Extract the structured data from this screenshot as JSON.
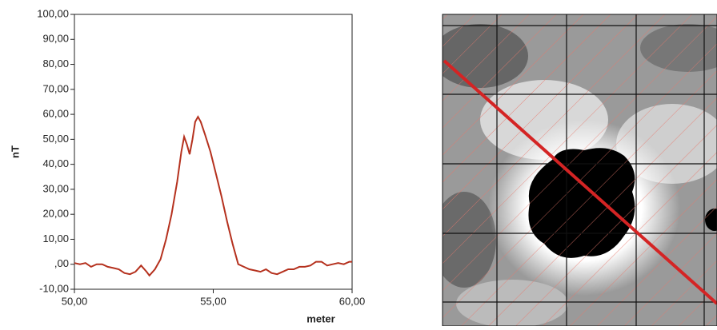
{
  "chart_data": {
    "type": "line",
    "xlabel": "meter",
    "ylabel": "nT",
    "xlim": [
      50,
      60
    ],
    "xticks": [
      {
        "value": 50,
        "label": "50,00"
      },
      {
        "value": 55,
        "label": "55,00"
      },
      {
        "value": 60,
        "label": "60,00"
      }
    ],
    "ylim": [
      -10,
      100
    ],
    "yticks": [
      {
        "value": -10,
        "label": "-10,00"
      },
      {
        "value": 0,
        "label": ",00"
      },
      {
        "value": 10,
        "label": "10,00"
      },
      {
        "value": 20,
        "label": "20,00"
      },
      {
        "value": 30,
        "label": "30,00"
      },
      {
        "value": 40,
        "label": "40,00"
      },
      {
        "value": 50,
        "label": "50,00"
      },
      {
        "value": 60,
        "label": "60,00"
      },
      {
        "value": 70,
        "label": "70,00"
      },
      {
        "value": 80,
        "label": "80,00"
      },
      {
        "value": 90,
        "label": "90,00"
      },
      {
        "value": 100,
        "label": "100,00"
      }
    ],
    "series": [
      {
        "color": "#b5311e",
        "x": [
          50.0,
          50.2,
          50.4,
          50.6,
          50.8,
          51.0,
          51.2,
          51.4,
          51.6,
          51.8,
          52.0,
          52.2,
          52.4,
          52.6,
          52.7,
          52.9,
          53.1,
          53.3,
          53.5,
          53.7,
          53.85,
          53.95,
          54.05,
          54.15,
          54.25,
          54.35,
          54.45,
          54.55,
          54.7,
          54.9,
          55.1,
          55.3,
          55.5,
          55.7,
          55.9,
          56.1,
          56.3,
          56.5,
          56.7,
          56.9,
          57.1,
          57.3,
          57.5,
          57.7,
          57.9,
          58.1,
          58.3,
          58.5,
          58.7,
          58.9,
          59.1,
          59.3,
          59.5,
          59.7,
          59.9,
          60.0
        ],
        "values": [
          0.5,
          0,
          0.5,
          -1,
          0,
          0,
          -1,
          -1.5,
          -2,
          -3.5,
          -4,
          -3,
          -0.5,
          -3,
          -4.5,
          -2,
          2,
          10,
          20,
          33,
          45,
          51,
          48,
          44,
          50,
          57,
          59,
          57,
          52,
          45,
          36,
          27,
          17,
          8,
          0,
          -1,
          -2,
          -2.5,
          -3,
          -2,
          -3.5,
          -4,
          -3,
          -2,
          -2,
          -1,
          -1,
          -0.5,
          1,
          1,
          -0.5,
          0,
          0.5,
          0,
          1,
          1
        ]
      }
    ]
  }
}
